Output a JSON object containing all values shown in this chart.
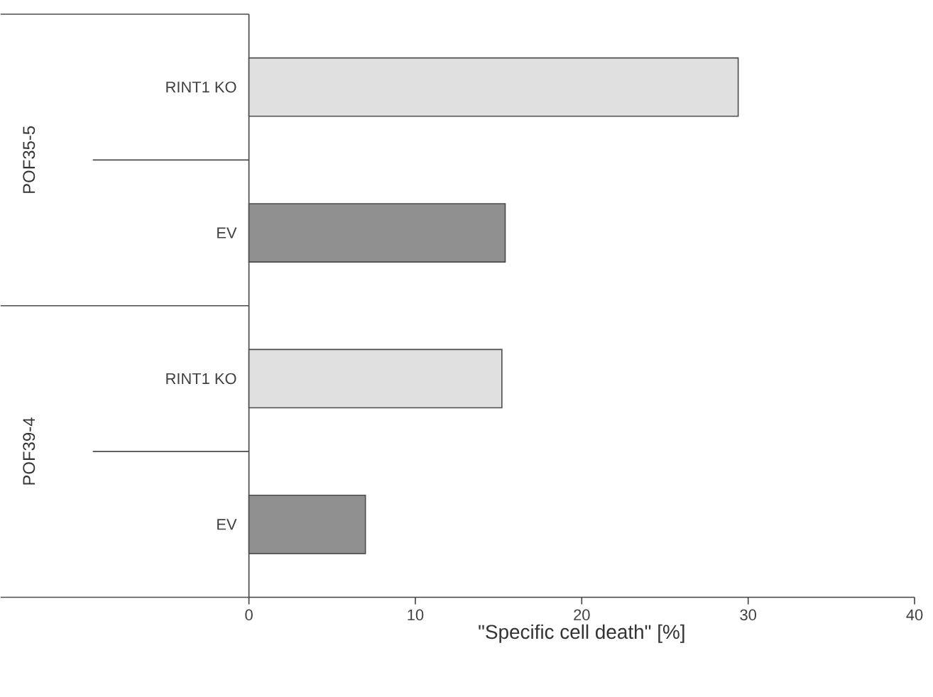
{
  "chart_data": {
    "type": "bar",
    "orientation": "horizontal",
    "categories": [
      "RINT1 KO",
      "EV",
      "RINT1 KO",
      "EV"
    ],
    "values": [
      29.4,
      15.4,
      15.2,
      7.0
    ],
    "colors": [
      "#e0e0e0",
      "#909090",
      "#e0e0e0",
      "#909090"
    ],
    "xlabel": "\"Specific cell death\" [%]",
    "xlim": [
      0,
      40
    ],
    "xticks": [
      0,
      10,
      20,
      30,
      40
    ],
    "annotations": [
      "POF35-5",
      "POF39-4"
    ],
    "grid": false
  }
}
